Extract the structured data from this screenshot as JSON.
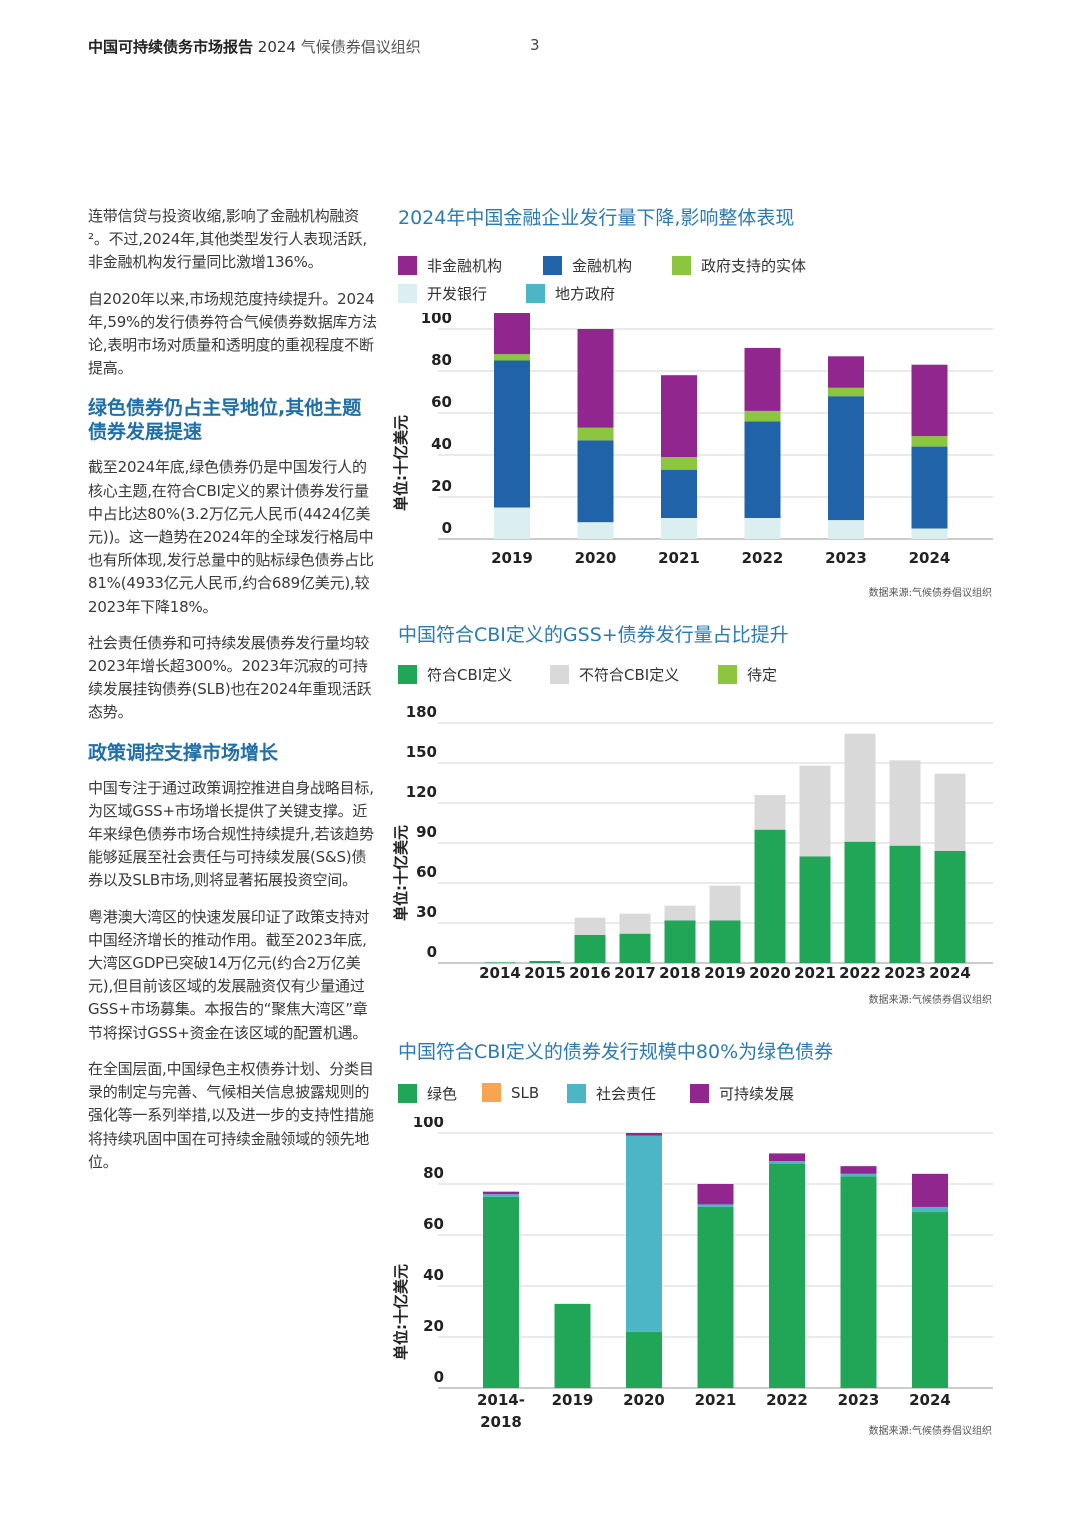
{
  "header": {
    "title": "中国可持续债务市场报告",
    "year": "2024",
    "org": "气候债券倡议组织",
    "page": "3"
  },
  "left": {
    "p1": "连带信贷与投资收缩,影响了金融机构融资²。不过,2024年,其他类型发行人表现活跃,非金融机构发行量同比激增136%。",
    "p2": "自2020年以来,市场规范度持续提升。2024年,59%的发行债券符合气候债券数据库方法论,表明市场对质量和透明度的重视程度不断提高。",
    "h1": "绿色债券仍占主导地位,其他主题债券发展提速",
    "p3": "截至2024年底,绿色债券仍是中国发行人的核心主题,在符合CBI定义的累计债券发行量中占比达80%(3.2万亿元人民币(4424亿美元))。这一趋势在2024年的全球发行格局中也有所体现,发行总量中的贴标绿色债券占比81%(4933亿元人民币,约合689亿美元),较2023年下降18%。",
    "p4": "社会责任债券和可持续发展债券发行量均较2023年增长超300%。2023年沉寂的可持续发展挂钩债券(SLB)也在2024年重现活跃态势。",
    "h2": "政策调控支撑市场增长",
    "p5": "中国专注于通过政策调控推进自身战略目标,为区域GSS+市场增长提供了关键支撑。近年来绿色债券市场合规性持续提升,若该趋势能够延展至社会责任与可持续发展(S&S)债券以及SLB市场,则将显著拓展投资空间。",
    "p6": "粤港澳大湾区的快速发展印证了政策支持对中国经济增长的推动作用。截至2023年底,大湾区GDP已突破14万亿元(约合2万亿美元),但目前该区域的发展融资仅有少量通过GSS+市场募集。本报告的“聚焦大湾区”章节将探讨GSS+资金在该区域的配置机遇。",
    "p7": "在全国层面,中国绿色主权债券计划、分类目录的制定与完善、气候相关信息披露规则的强化等一系列举措,以及进一步的支持性措施将持续巩固中国在可持续金融领域的领先地位。"
  },
  "chart_data": [
    {
      "type": "bar",
      "stacked": true,
      "title": "2024年中国金融企业发行量下降,影响整体表现",
      "ylabel": "单位:十亿美元",
      "xlabel": "",
      "ylim": [
        0,
        100
      ],
      "yticks": [
        0,
        20,
        40,
        60,
        80,
        100
      ],
      "categories": [
        "2019",
        "2020",
        "2021",
        "2022",
        "2023",
        "2024"
      ],
      "series": [
        {
          "name": "开发银行",
          "color": "#dceff0",
          "values": [
            15,
            8,
            10,
            10,
            9,
            5
          ]
        },
        {
          "name": "地方政府",
          "color": "#4db6c6",
          "values": [
            0,
            0,
            0,
            0,
            0,
            0
          ]
        },
        {
          "name": "金融机构",
          "color": "#2163a8",
          "values": [
            70,
            39,
            23,
            46,
            59,
            39
          ]
        },
        {
          "name": "政府支持的实体",
          "color": "#8cc63f",
          "values": [
            3,
            6,
            6,
            5,
            4,
            5
          ]
        },
        {
          "name": "非金融机构",
          "color": "#91268f",
          "values": [
            20,
            47,
            39,
            30,
            15,
            34
          ]
        }
      ],
      "legend": [
        {
          "name": "非金融机构",
          "color": "#91268f"
        },
        {
          "name": "金融机构",
          "color": "#2163a8"
        },
        {
          "name": "政府支持的实体",
          "color": "#8cc63f"
        },
        {
          "name": "开发银行",
          "color": "#dceff0"
        },
        {
          "name": "地方政府",
          "color": "#4db6c6"
        }
      ],
      "source": "数据来源:气候债券倡议组织"
    },
    {
      "type": "bar",
      "stacked": true,
      "title": "中国符合CBI定义的GSS+债券发行量占比提升",
      "ylabel": "单位:十亿美元",
      "xlabel": "",
      "ylim": [
        0,
        180
      ],
      "yticks": [
        0,
        30,
        60,
        90,
        120,
        150,
        180
      ],
      "categories": [
        "2014",
        "2015",
        "2016",
        "2017",
        "2018",
        "2019",
        "2020",
        "2021",
        "2022",
        "2023",
        "2024"
      ],
      "series": [
        {
          "name": "符合CBI定义",
          "color": "#21a658",
          "values": [
            0.5,
            1.5,
            21,
            22,
            32,
            32,
            100,
            80,
            91,
            88,
            84
          ]
        },
        {
          "name": "不符合CBI定义",
          "color": "#d9d9d9",
          "values": [
            0,
            0,
            13,
            15,
            11,
            26,
            26,
            68,
            81,
            64,
            58
          ]
        },
        {
          "name": "待定",
          "color": "#8cc63f",
          "values": [
            0,
            0,
            0,
            0,
            0,
            0,
            0,
            0,
            0,
            0,
            0
          ]
        }
      ],
      "legend": [
        {
          "name": "符合CBI定义",
          "color": "#21a658"
        },
        {
          "name": "不符合CBI定义",
          "color": "#d9d9d9"
        },
        {
          "name": "待定",
          "color": "#8cc63f"
        }
      ],
      "source": "数据来源:气候债券倡议组织"
    },
    {
      "type": "bar",
      "stacked": true,
      "title": "中国符合CBI定义的债券发行规模中80%为绿色债券",
      "ylabel": "单位:十亿美元",
      "xlabel": "",
      "ylim": [
        0,
        100
      ],
      "yticks": [
        0,
        20,
        40,
        60,
        80,
        100
      ],
      "categories": [
        "2014-\n2018",
        "2019",
        "2020",
        "2021",
        "2022",
        "2023",
        "2024"
      ],
      "series": [
        {
          "name": "绿色",
          "color": "#21a658",
          "values": [
            75,
            33,
            22,
            71,
            88,
            83,
            69
          ]
        },
        {
          "name": "SLB",
          "color": "#f7a552",
          "values": [
            0,
            0,
            0,
            0,
            0,
            0,
            0
          ]
        },
        {
          "name": "社会责任",
          "color": "#4db6c6",
          "values": [
            1,
            0,
            77,
            1,
            1,
            1,
            2
          ]
        },
        {
          "name": "可持续发展",
          "color": "#91268f",
          "values": [
            1,
            0,
            1,
            8,
            3,
            3,
            13
          ]
        }
      ],
      "legend": [
        {
          "name": "绿色",
          "color": "#21a658"
        },
        {
          "name": "SLB",
          "color": "#f7a552"
        },
        {
          "name": "社会责任",
          "color": "#4db6c6"
        },
        {
          "name": "可持续发展",
          "color": "#91268f"
        }
      ],
      "source": "数据来源:气候债券倡议组织"
    }
  ]
}
